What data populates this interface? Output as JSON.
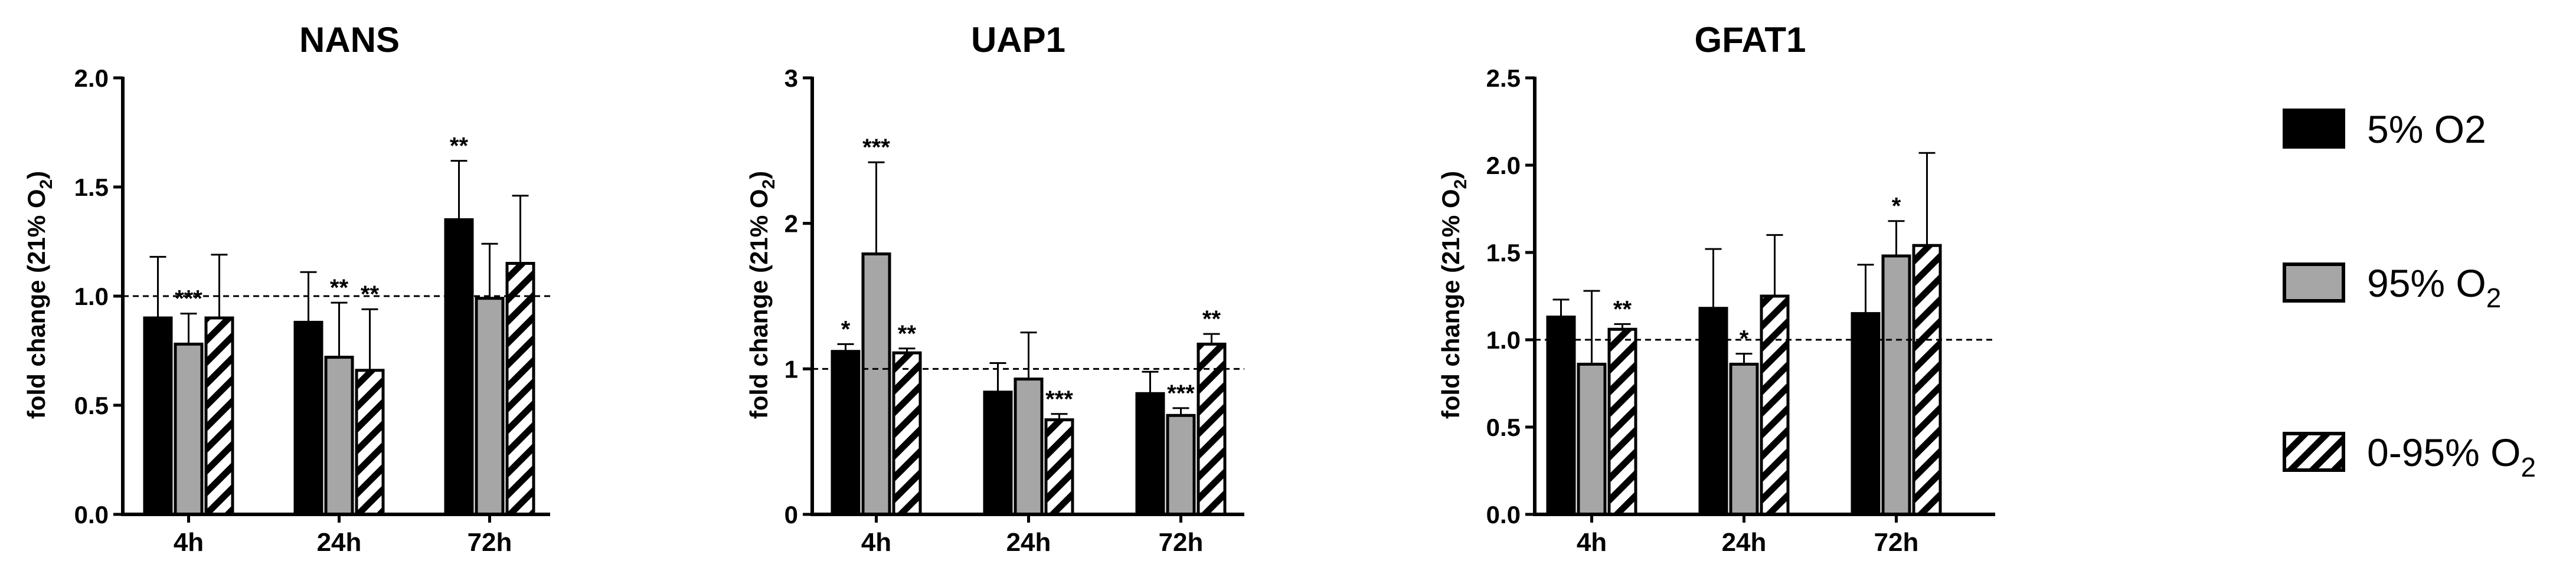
{
  "legend": [
    {
      "series": "5% O2",
      "label": "5% O2",
      "sub": "",
      "fill": "#000000",
      "pattern": "solid"
    },
    {
      "series": "95% O2",
      "label": "95% O",
      "sub": "2",
      "fill": "#a6a6a6",
      "pattern": "solid"
    },
    {
      "series": "0-95% O2",
      "label": "0-95% O",
      "sub": "2",
      "fill": "#ffffff",
      "pattern": "hatch"
    }
  ],
  "colors": {
    "s5": "#000000",
    "s95": "#a6a6a6",
    "hatch_bg": "#ffffff",
    "ink": "#000000"
  },
  "chart_data": [
    {
      "type": "bar",
      "title": "NANS",
      "ylabel": "fold change (21% O",
      "ylabel_sub": "2",
      "ylabel_tail": ")",
      "categories": [
        "4h",
        "24h",
        "72h"
      ],
      "ylim": [
        0,
        2.0
      ],
      "yticks": [
        0,
        0.5,
        1.0,
        1.5,
        2.0
      ],
      "ytick_labels": [
        "0.0",
        "0.5",
        "1.0",
        "1.5",
        "2.0"
      ],
      "reference_line": 1.0,
      "series": [
        {
          "name": "5% O2",
          "values": [
            0.9,
            0.88,
            1.35
          ],
          "errors": [
            0.28,
            0.23,
            0.27
          ],
          "sig": [
            "",
            "",
            "**"
          ]
        },
        {
          "name": "95% O2",
          "values": [
            0.78,
            0.72,
            0.99
          ],
          "errors": [
            0.14,
            0.25,
            0.25
          ],
          "sig": [
            "***",
            "**",
            ""
          ]
        },
        {
          "name": "0-95% O2",
          "values": [
            0.9,
            0.66,
            1.15
          ],
          "errors": [
            0.29,
            0.28,
            0.31
          ],
          "sig": [
            "",
            "**",
            ""
          ]
        }
      ]
    },
    {
      "type": "bar",
      "title": "UAP1",
      "ylabel": "fold change (21% O",
      "ylabel_sub": "2",
      "ylabel_tail": ")",
      "categories": [
        "4h",
        "24h",
        "72h"
      ],
      "ylim": [
        0,
        3
      ],
      "yticks": [
        0,
        1,
        2,
        3
      ],
      "ytick_labels": [
        "0",
        "1",
        "2",
        "3"
      ],
      "reference_line": 1.0,
      "series": [
        {
          "name": "5% O2",
          "values": [
            1.12,
            0.84,
            0.83
          ],
          "errors": [
            0.05,
            0.2,
            0.15
          ],
          "sig": [
            "*",
            "",
            ""
          ]
        },
        {
          "name": "95% O2",
          "values": [
            1.79,
            0.93,
            0.68
          ],
          "errors": [
            0.63,
            0.32,
            0.05
          ],
          "sig": [
            "***",
            "",
            "***"
          ]
        },
        {
          "name": "0-95% O2",
          "values": [
            1.11,
            0.65,
            1.17
          ],
          "errors": [
            0.03,
            0.04,
            0.07
          ],
          "sig": [
            "**",
            "***",
            "**"
          ]
        }
      ]
    },
    {
      "type": "bar",
      "title": "GFAT1",
      "ylabel": "fold change (21% O",
      "ylabel_sub": "2",
      "ylabel_tail": ")",
      "categories": [
        "4h",
        "24h",
        "72h"
      ],
      "ylim": [
        0,
        2.5
      ],
      "yticks": [
        0,
        0.5,
        1.0,
        1.5,
        2.0,
        2.5
      ],
      "ytick_labels": [
        "0.0",
        "0.5",
        "1.0",
        "1.5",
        "2.0",
        "2.5"
      ],
      "reference_line": 1.0,
      "series": [
        {
          "name": "5% O2",
          "values": [
            1.13,
            1.18,
            1.15
          ],
          "errors": [
            0.1,
            0.34,
            0.28
          ],
          "sig": [
            "",
            "",
            ""
          ]
        },
        {
          "name": "95% O2",
          "values": [
            0.86,
            0.86,
            1.48
          ],
          "errors": [
            0.42,
            0.06,
            0.2
          ],
          "sig": [
            "",
            "*",
            "*"
          ]
        },
        {
          "name": "0-95% O2",
          "values": [
            1.06,
            1.25,
            1.54
          ],
          "errors": [
            0.03,
            0.35,
            0.53
          ],
          "sig": [
            "**",
            "",
            ""
          ]
        }
      ]
    }
  ]
}
